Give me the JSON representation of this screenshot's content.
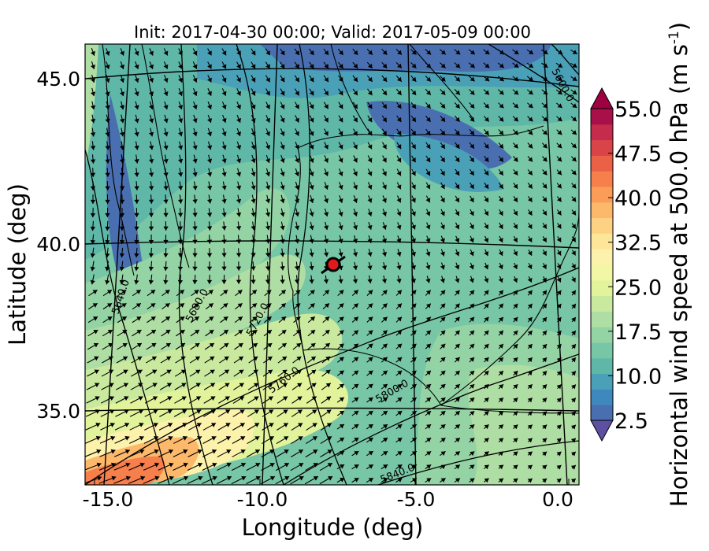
{
  "figure": {
    "title": "Init: 2017-04-30 00:00; Valid: 2017-05-09 00:00",
    "xlabel": "Longitude (deg)",
    "ylabel": "Latitude (deg)",
    "x_ticks": [
      "-15.0",
      "-10.0",
      "-5.0",
      "0.0"
    ],
    "y_ticks": [
      "45.0",
      "40.0",
      "35.0"
    ]
  },
  "colorbar": {
    "label": "Horizontal wind speed at 500.0 hPa (m s",
    "label_sup": "-1",
    "label_end": ")",
    "ticks": [
      "55.0",
      "47.5",
      "40.0",
      "32.5",
      "25.0",
      "17.5",
      "10.0",
      "2.5"
    ],
    "min": 2.5,
    "max": 55.0,
    "colors": [
      "#5e4fa2",
      "#4a6fb0",
      "#3f88bd",
      "#4aa0b6",
      "#5fb7a8",
      "#77c6a6",
      "#93d3a4",
      "#aedea3",
      "#c8e99e",
      "#e1f39b",
      "#f2f7a6",
      "#fdf2ab",
      "#fee699",
      "#fed283",
      "#fdb96b",
      "#fb9c59",
      "#f67f4c",
      "#ea6146",
      "#d94449",
      "#c52b4b",
      "#a8104a",
      "#9e0142"
    ]
  },
  "contours": {
    "labels": [
      "5600.0",
      "5640.0",
      "5680.0",
      "5720.0",
      "5760.0",
      "5800.0",
      "5840.0"
    ]
  },
  "marker": {
    "lon": -7.7,
    "lat": 39.4,
    "color": "#e31a1c"
  }
}
